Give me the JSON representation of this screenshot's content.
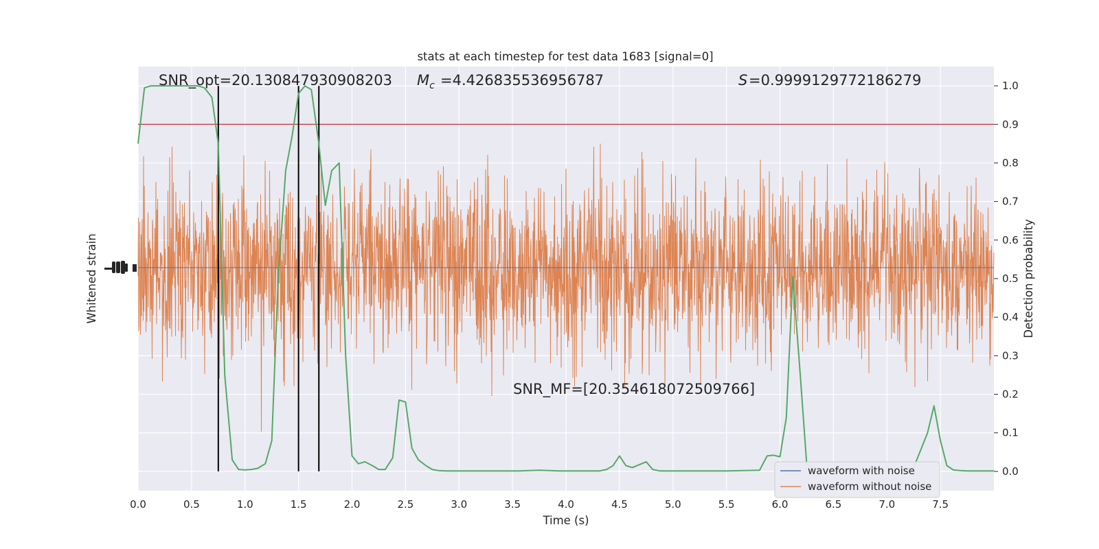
{
  "chart_data": {
    "type": "line",
    "title": "stats at each timestep for test data 1683 [signal=0]",
    "xlabel": "Time (s)",
    "ylabel_left": "Whitened strain",
    "ylabel_right": "Detection probability",
    "xlim": [
      0.0,
      8.0
    ],
    "ylim_right": [
      -0.05,
      1.05
    ],
    "x_ticks": [
      "0.0",
      "0.5",
      "1.0",
      "1.5",
      "2.0",
      "2.5",
      "3.0",
      "3.5",
      "4.0",
      "4.5",
      "5.0",
      "5.5",
      "6.0",
      "6.5",
      "7.0",
      "7.5"
    ],
    "x_tick_values": [
      0,
      0.5,
      1,
      1.5,
      2,
      2.5,
      3,
      3.5,
      4,
      4.5,
      5,
      5.5,
      6,
      6.5,
      7,
      7.5
    ],
    "y_right_ticks": [
      "0.0",
      "0.1",
      "0.2",
      "0.3",
      "0.4",
      "0.5",
      "0.6",
      "0.7",
      "0.8",
      "0.9",
      "1.0"
    ],
    "y_right_tick_values": [
      0,
      0.1,
      0.2,
      0.3,
      0.4,
      0.5,
      0.6,
      0.7,
      0.8,
      0.9,
      1.0
    ],
    "grid": true,
    "legend_position": "lower-right",
    "colors": {
      "background": "#eaeaf2",
      "grid": "#ffffff",
      "waveform_with_noise": "#4c72b0",
      "waveform_without_noise": "#dd8452",
      "probability": "#55a868",
      "threshold": "#c44e52",
      "markers": "#000000"
    },
    "annotations": {
      "snr_opt": "SNR_opt=20.130847930908203",
      "mc": "=4.426835536956787",
      "s": "=0.9999129772186279",
      "snr_mf": "SNR_MF=[20.354618072509766]"
    },
    "threshold": 0.9,
    "vertical_markers": [
      0.75,
      1.5,
      1.69
    ],
    "series": [
      {
        "name": "waveform with noise"
      },
      {
        "name": "waveform without noise"
      }
    ],
    "probability": {
      "x": [
        0.0,
        0.06,
        0.12,
        0.19,
        0.25,
        0.31,
        0.38,
        0.44,
        0.5,
        0.56,
        0.62,
        0.69,
        0.75,
        0.81,
        0.88,
        0.94,
        1.0,
        1.06,
        1.12,
        1.19,
        1.25,
        1.31,
        1.38,
        1.44,
        1.5,
        1.56,
        1.62,
        1.69,
        1.75,
        1.81,
        1.88,
        1.94,
        2.0,
        2.06,
        2.12,
        2.19,
        2.25,
        2.31,
        2.38,
        2.44,
        2.5,
        2.56,
        2.62,
        2.69,
        2.75,
        2.81,
        2.88,
        2.94,
        3.0,
        3.19,
        3.38,
        3.56,
        3.75,
        3.94,
        4.12,
        4.31,
        4.38,
        4.44,
        4.5,
        4.56,
        4.62,
        4.69,
        4.75,
        4.81,
        4.88,
        5.0,
        5.5,
        5.81,
        5.88,
        5.94,
        6.0,
        6.06,
        6.12,
        6.19,
        6.25,
        6.31,
        6.5,
        7.0,
        7.25,
        7.38,
        7.44,
        7.5,
        7.56,
        7.62,
        7.69,
        7.75,
        8.0
      ],
      "y": [
        0.85,
        0.995,
        1.0,
        1.0,
        1.0,
        1.0,
        1.0,
        1.0,
        1.0,
        1.0,
        0.995,
        0.97,
        0.85,
        0.25,
        0.03,
        0.005,
        0.004,
        0.005,
        0.008,
        0.02,
        0.08,
        0.5,
        0.78,
        0.87,
        0.98,
        1.0,
        0.99,
        0.85,
        0.69,
        0.78,
        0.8,
        0.3,
        0.04,
        0.02,
        0.025,
        0.015,
        0.005,
        0.005,
        0.035,
        0.185,
        0.18,
        0.06,
        0.03,
        0.015,
        0.005,
        0.002,
        0.001,
        0.001,
        0.001,
        0.001,
        0.001,
        0.001,
        0.003,
        0.001,
        0.001,
        0.001,
        0.005,
        0.015,
        0.04,
        0.015,
        0.01,
        0.018,
        0.025,
        0.005,
        0.001,
        0.001,
        0.001,
        0.003,
        0.04,
        0.042,
        0.038,
        0.14,
        0.505,
        0.25,
        0.02,
        0.01,
        0.001,
        0.001,
        0.01,
        0.1,
        0.17,
        0.08,
        0.015,
        0.004,
        0.002,
        0.001,
        0.001
      ]
    }
  }
}
